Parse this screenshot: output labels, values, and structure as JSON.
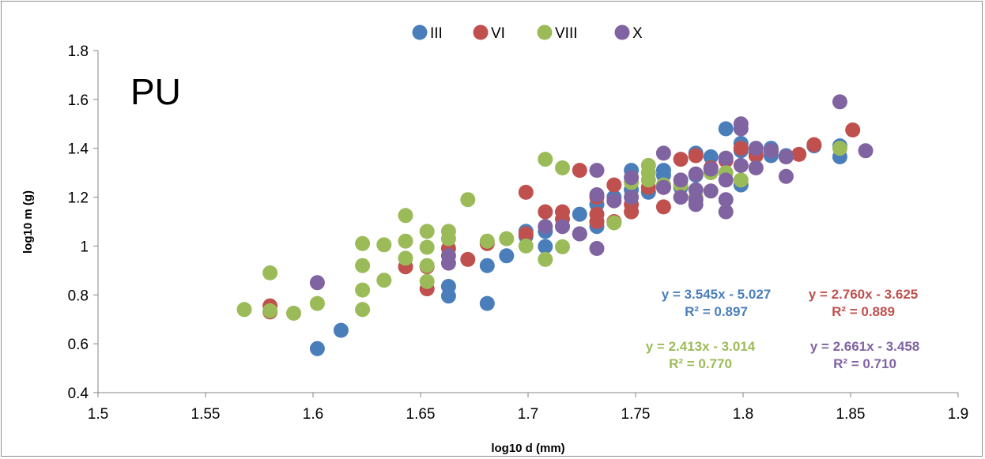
{
  "chart_data": {
    "type": "scatter",
    "xlabel": "log10 d (mm)",
    "ylabel": "log10 m (g)",
    "panel_label": "PU",
    "xlim": [
      1.5,
      1.9
    ],
    "ylim": [
      0.4,
      1.8
    ],
    "x_ticks": [
      "1.5",
      "1.55",
      "1.6",
      "1.65",
      "1.7",
      "1.75",
      "1.8",
      "1.85",
      "1.9"
    ],
    "y_ticks": [
      "0.4",
      "0.6",
      "0.8",
      "1",
      "1.2",
      "1.4",
      "1.6",
      "1.8"
    ],
    "grid": false,
    "legend_position": "top-center",
    "series": [
      {
        "name": "III",
        "color": "#4a7ebb",
        "points": [
          [
            1.602,
            0.58
          ],
          [
            1.613,
            0.655
          ],
          [
            1.663,
            0.795
          ],
          [
            1.663,
            0.835
          ],
          [
            1.681,
            0.765
          ],
          [
            1.681,
            0.92
          ],
          [
            1.69,
            0.96
          ],
          [
            1.699,
            1.04
          ],
          [
            1.699,
            1.06
          ],
          [
            1.708,
            0.998
          ],
          [
            1.708,
            1.06
          ],
          [
            1.716,
            1.08
          ],
          [
            1.724,
            1.05
          ],
          [
            1.724,
            1.13
          ],
          [
            1.732,
            1.08
          ],
          [
            1.732,
            1.1
          ],
          [
            1.732,
            1.17
          ],
          [
            1.74,
            1.2
          ],
          [
            1.748,
            1.23
          ],
          [
            1.748,
            1.31
          ],
          [
            1.756,
            1.22
          ],
          [
            1.763,
            1.29
          ],
          [
            1.763,
            1.31
          ],
          [
            1.771,
            1.24
          ],
          [
            1.778,
            1.29
          ],
          [
            1.778,
            1.38
          ],
          [
            1.785,
            1.365
          ],
          [
            1.792,
            1.48
          ],
          [
            1.799,
            1.25
          ],
          [
            1.799,
            1.39
          ],
          [
            1.799,
            1.42
          ],
          [
            1.806,
            1.38
          ],
          [
            1.813,
            1.37
          ],
          [
            1.813,
            1.4
          ],
          [
            1.82,
            1.37
          ],
          [
            1.833,
            1.41
          ],
          [
            1.845,
            1.365
          ],
          [
            1.845,
            1.41
          ]
        ]
      },
      {
        "name": "VI",
        "color": "#c0504d",
        "points": [
          [
            1.58,
            0.73
          ],
          [
            1.58,
            0.755
          ],
          [
            1.643,
            0.915
          ],
          [
            1.653,
            0.825
          ],
          [
            1.653,
            0.915
          ],
          [
            1.663,
            0.99
          ],
          [
            1.672,
            0.945
          ],
          [
            1.681,
            1.01
          ],
          [
            1.699,
            1.05
          ],
          [
            1.699,
            1.22
          ],
          [
            1.708,
            1.14
          ],
          [
            1.716,
            1.11
          ],
          [
            1.716,
            1.14
          ],
          [
            1.724,
            1.31
          ],
          [
            1.732,
            1.1
          ],
          [
            1.732,
            1.13
          ],
          [
            1.732,
            1.2
          ],
          [
            1.74,
            1.1
          ],
          [
            1.74,
            1.25
          ],
          [
            1.748,
            1.14
          ],
          [
            1.748,
            1.17
          ],
          [
            1.756,
            1.24
          ],
          [
            1.763,
            1.16
          ],
          [
            1.763,
            1.24
          ],
          [
            1.771,
            1.355
          ],
          [
            1.778,
            1.37
          ],
          [
            1.785,
            1.32
          ],
          [
            1.792,
            1.35
          ],
          [
            1.799,
            1.4
          ],
          [
            1.806,
            1.37
          ],
          [
            1.813,
            1.39
          ],
          [
            1.82,
            1.365
          ],
          [
            1.826,
            1.375
          ],
          [
            1.833,
            1.415
          ],
          [
            1.851,
            1.475
          ]
        ]
      },
      {
        "name": "VIII",
        "color": "#9bbb59",
        "points": [
          [
            1.568,
            0.74
          ],
          [
            1.58,
            0.735
          ],
          [
            1.58,
            0.89
          ],
          [
            1.591,
            0.725
          ],
          [
            1.602,
            0.765
          ],
          [
            1.623,
            0.74
          ],
          [
            1.623,
            0.82
          ],
          [
            1.623,
            0.92
          ],
          [
            1.623,
            1.01
          ],
          [
            1.633,
            0.86
          ],
          [
            1.633,
            1.005
          ],
          [
            1.643,
            0.95
          ],
          [
            1.643,
            1.02
          ],
          [
            1.643,
            1.125
          ],
          [
            1.653,
            0.855
          ],
          [
            1.653,
            0.92
          ],
          [
            1.653,
            0.995
          ],
          [
            1.653,
            1.06
          ],
          [
            1.663,
            1.03
          ],
          [
            1.663,
            1.06
          ],
          [
            1.672,
            1.19
          ],
          [
            1.681,
            1.02
          ],
          [
            1.69,
            1.03
          ],
          [
            1.699,
            1.0
          ],
          [
            1.708,
            0.945
          ],
          [
            1.708,
            1.355
          ],
          [
            1.716,
            0.997
          ],
          [
            1.716,
            1.32
          ],
          [
            1.74,
            1.095
          ],
          [
            1.748,
            1.26
          ],
          [
            1.756,
            1.27
          ],
          [
            1.756,
            1.3
          ],
          [
            1.756,
            1.33
          ],
          [
            1.763,
            1.25
          ],
          [
            1.771,
            1.25
          ],
          [
            1.778,
            1.2
          ],
          [
            1.785,
            1.3
          ],
          [
            1.792,
            1.3
          ],
          [
            1.799,
            1.27
          ],
          [
            1.845,
            1.4
          ]
        ]
      },
      {
        "name": "X",
        "color": "#8064a2",
        "points": [
          [
            1.602,
            0.85
          ],
          [
            1.663,
            0.93
          ],
          [
            1.663,
            0.96
          ],
          [
            1.708,
            1.08
          ],
          [
            1.716,
            1.08
          ],
          [
            1.724,
            1.05
          ],
          [
            1.732,
            0.99
          ],
          [
            1.732,
            1.21
          ],
          [
            1.732,
            1.31
          ],
          [
            1.74,
            1.185
          ],
          [
            1.748,
            1.2
          ],
          [
            1.748,
            1.28
          ],
          [
            1.763,
            1.24
          ],
          [
            1.763,
            1.38
          ],
          [
            1.771,
            1.2
          ],
          [
            1.771,
            1.27
          ],
          [
            1.778,
            1.17
          ],
          [
            1.778,
            1.19
          ],
          [
            1.778,
            1.23
          ],
          [
            1.778,
            1.295
          ],
          [
            1.785,
            1.225
          ],
          [
            1.785,
            1.315
          ],
          [
            1.792,
            1.14
          ],
          [
            1.792,
            1.19
          ],
          [
            1.792,
            1.27
          ],
          [
            1.792,
            1.36
          ],
          [
            1.799,
            1.33
          ],
          [
            1.799,
            1.48
          ],
          [
            1.799,
            1.5
          ],
          [
            1.806,
            1.32
          ],
          [
            1.806,
            1.4
          ],
          [
            1.813,
            1.39
          ],
          [
            1.82,
            1.285
          ],
          [
            1.82,
            1.365
          ],
          [
            1.845,
            1.59
          ],
          [
            1.857,
            1.39
          ]
        ]
      }
    ],
    "annotations": [
      {
        "series": "III",
        "equation": "y = 3.545x - 5.027",
        "r2": "R² = 0.897"
      },
      {
        "series": "VI",
        "equation": "y = 2.760x - 3.625",
        "r2": "R² = 0.889"
      },
      {
        "series": "VIII",
        "equation": "y = 2.413x - 3.014",
        "r2": "R² = 0.770"
      },
      {
        "series": "X",
        "equation": "y = 2.661x - 3.458",
        "r2": "R² = 0.710"
      }
    ]
  }
}
